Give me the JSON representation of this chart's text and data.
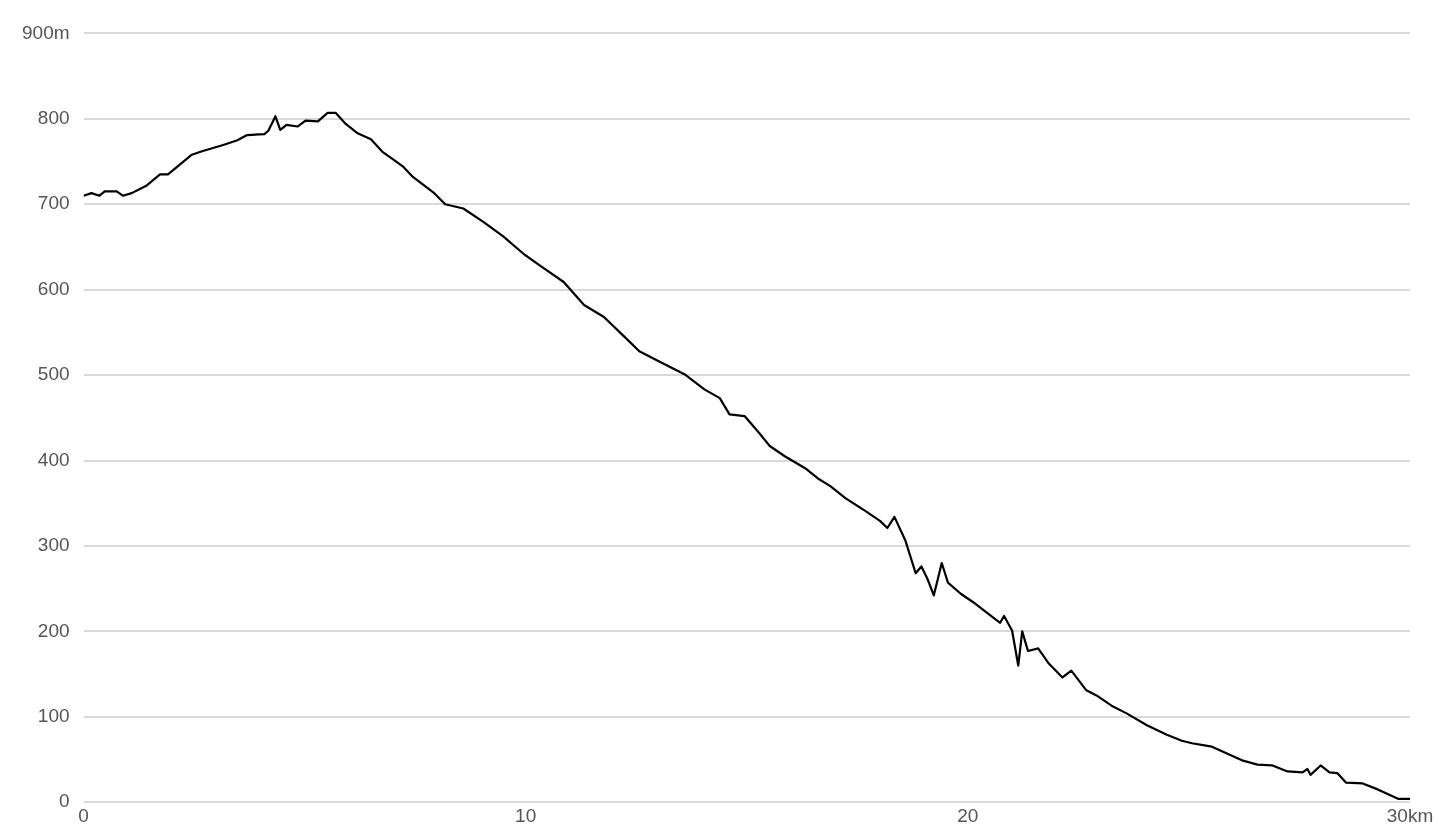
{
  "chart_data": {
    "type": "line",
    "x": [
      0,
      0.18,
      0.36,
      0.48,
      0.75,
      0.89,
      1.09,
      1.43,
      1.73,
      1.91,
      2.45,
      2.68,
      3.14,
      3.48,
      3.7,
      4.09,
      4.18,
      4.34,
      4.45,
      4.59,
      4.84,
      5.02,
      5.3,
      5.52,
      5.7,
      5.91,
      6.2,
      6.5,
      6.77,
      7.23,
      7.45,
      7.91,
      8.18,
      8.59,
      9.05,
      9.5,
      9.95,
      10.3,
      10.86,
      11.32,
      11.77,
      12.23,
      12.57,
      13.02,
      13.59,
      14.05,
      14.39,
      14.61,
      14.95,
      15.3,
      15.52,
      15.86,
      16.32,
      16.61,
      16.89,
      17.23,
      17.68,
      18.02,
      18.18,
      18.34,
      18.59,
      18.82,
      18.95,
      19.09,
      19.23,
      19.41,
      19.55,
      19.84,
      20.18,
      20.45,
      20.73,
      20.82,
      21,
      21.14,
      21.23,
      21.36,
      21.59,
      21.82,
      22.14,
      22.34,
      22.68,
      22.91,
      23.25,
      23.59,
      24.05,
      24.5,
      24.84,
      25.07,
      25.52,
      25.86,
      26.2,
      26.55,
      26.89,
      27.23,
      27.57,
      27.68,
      27.75,
      27.98,
      28.18,
      28.36,
      28.55,
      28.93,
      29.27,
      29.73,
      30
    ],
    "series": [
      {
        "color": "#000000",
        "values": [
          710,
          713,
          710,
          715,
          715,
          710,
          713,
          722,
          735,
          735,
          758,
          762,
          769,
          775,
          781,
          782,
          786,
          803,
          787,
          793,
          791,
          798,
          797,
          807,
          807,
          795,
          783,
          776,
          761,
          744,
          732,
          714,
          700,
          695,
          679,
          662,
          642,
          629,
          609,
          582,
          568,
          545,
          528,
          516,
          501,
          483,
          473,
          454,
          452,
          431,
          417,
          405,
          391,
          379,
          370,
          356,
          341,
          329,
          321,
          334,
          306,
          268,
          276,
          261,
          242,
          280,
          257,
          244,
          232,
          221,
          210,
          218,
          201,
          160,
          200,
          177,
          180,
          163,
          146,
          154,
          131,
          125,
          113,
          104,
          90,
          79,
          72,
          69,
          65,
          57,
          49,
          44,
          43,
          36,
          35,
          39,
          32,
          43,
          35,
          34,
          23,
          22,
          15,
          4,
          4
        ]
      }
    ],
    "xlim": [
      0,
      30
    ],
    "xticks": [
      0,
      10,
      20,
      {
        "value": 30,
        "label": "30km"
      }
    ],
    "ylim": [
      0,
      900
    ],
    "yticks": [
      0,
      100,
      200,
      300,
      400,
      500,
      600,
      700,
      800,
      {
        "value": 900,
        "label": "900m"
      }
    ],
    "grid": "y",
    "legend": false,
    "marker": "none",
    "line_style": "solid"
  }
}
